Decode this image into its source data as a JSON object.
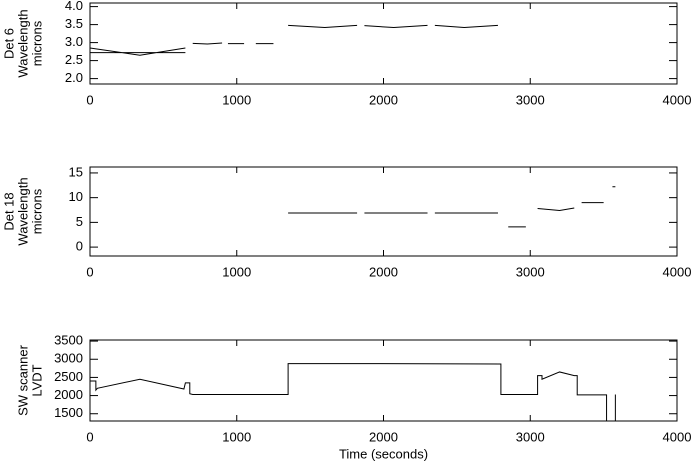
{
  "chart_data": [
    {
      "type": "line",
      "color": "#000000",
      "ylabel": [
        "Det 6",
        "Wavelength",
        "microns"
      ],
      "xlim": [
        0,
        4000
      ],
      "xticks": [
        0,
        1000,
        2000,
        3000,
        4000
      ],
      "ylim": [
        1.85,
        4.1
      ],
      "yticks": [
        {
          "value": 2,
          "label": "2.0"
        },
        2.5,
        {
          "value": 3,
          "label": "3.0"
        },
        3.5,
        {
          "value": 4,
          "label": "4.0"
        }
      ],
      "x": [
        0,
        340,
        650,
        650,
        0,
        650,
        650,
        700,
        800,
        900,
        900,
        940,
        1050,
        1050,
        1130,
        1250,
        1250,
        1350,
        1600,
        1820,
        1820,
        1870,
        2070,
        2300,
        2300,
        2350,
        2550,
        2780
      ],
      "values": [
        2.85,
        2.65,
        2.85,
        null,
        2.72,
        2.72,
        null,
        2.98,
        2.96,
        2.99,
        null,
        2.97,
        2.97,
        null,
        2.97,
        2.97,
        null,
        3.48,
        3.42,
        3.48,
        null,
        3.47,
        3.42,
        3.48,
        null,
        3.48,
        3.42,
        3.48
      ]
    },
    {
      "type": "line",
      "color": "#000000",
      "ylabel": [
        "Det 18",
        "Wavelength",
        "microns"
      ],
      "xlim": [
        0,
        4000
      ],
      "xticks": [
        0,
        1000,
        2000,
        3000,
        4000
      ],
      "ylim": [
        -1.8,
        16.2
      ],
      "yticks": [
        0,
        5,
        10,
        15
      ],
      "x": [
        1350,
        1820,
        1820,
        1870,
        2300,
        2300,
        2350,
        2780,
        2780,
        2850,
        2970,
        2970,
        3050,
        3200,
        3300,
        3300,
        3350,
        3500,
        3500,
        3560,
        3580
      ],
      "values": [
        6.9,
        6.9,
        null,
        6.9,
        6.9,
        null,
        6.9,
        6.9,
        null,
        4.1,
        4.1,
        null,
        7.8,
        7.4,
        7.9,
        null,
        9.0,
        9.0,
        null,
        12.2,
        12.2
      ]
    },
    {
      "type": "line",
      "color": "#000000",
      "ylabel": [
        "SW scanner",
        "LVDT"
      ],
      "xlabel": "Time (seconds)",
      "xlim": [
        0,
        4000
      ],
      "xticks": [
        0,
        1000,
        2000,
        3000,
        4000
      ],
      "ylim": [
        1300,
        3530
      ],
      "yticks": [
        1500,
        2000,
        2500,
        3000,
        3500
      ],
      "x": [
        0,
        0,
        40,
        40,
        50,
        340,
        640,
        650,
        680,
        680,
        700,
        1350,
        1350,
        1800,
        2800,
        2800,
        3050,
        3050,
        3080,
        3080,
        3200,
        3300,
        3320,
        3320,
        3520,
        3520,
        3520,
        3580,
        3580
      ],
      "values": [
        2100,
        2400,
        2400,
        2150,
        2200,
        2450,
        2180,
        2350,
        2350,
        2050,
        2030,
        2030,
        2880,
        2880,
        2870,
        2030,
        2030,
        2550,
        2550,
        2450,
        2650,
        2550,
        2550,
        2020,
        2020,
        1300,
        null,
        2030,
        1300
      ]
    }
  ]
}
